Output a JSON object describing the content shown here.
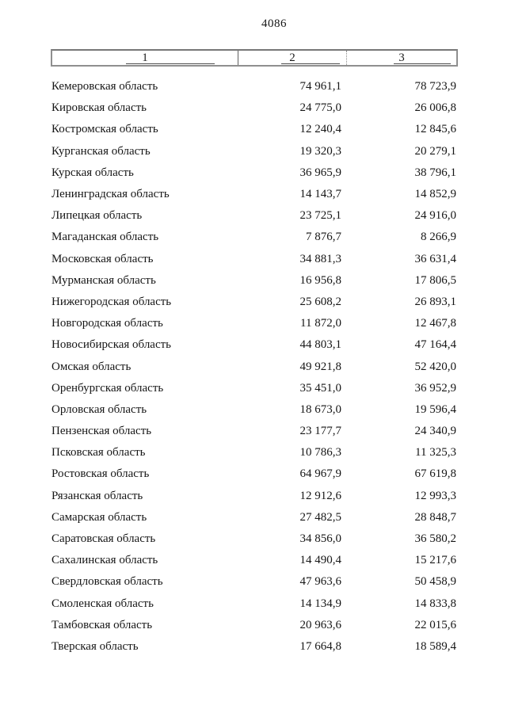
{
  "page": {
    "number": "4086"
  },
  "table": {
    "columns": [
      {
        "label": "1"
      },
      {
        "label": "2"
      },
      {
        "label": "3"
      }
    ],
    "rows": [
      {
        "name": "Кемеровская область",
        "value2": "74 961,1",
        "value3": "78 723,9"
      },
      {
        "name": "Кировская область",
        "value2": "24 775,0",
        "value3": "26 006,8"
      },
      {
        "name": "Костромская область",
        "value2": "12 240,4",
        "value3": "12 845,6"
      },
      {
        "name": "Курганская область",
        "value2": "19 320,3",
        "value3": "20 279,1"
      },
      {
        "name": "Курская область",
        "value2": "36 965,9",
        "value3": "38 796,1"
      },
      {
        "name": "Ленинградская область",
        "value2": "14 143,7",
        "value3": "14 852,9"
      },
      {
        "name": "Липецкая область",
        "value2": "23 725,1",
        "value3": "24 916,0"
      },
      {
        "name": "Магаданская область",
        "value2": "7 876,7",
        "value3": "8 266,9"
      },
      {
        "name": "Московская область",
        "value2": "34 881,3",
        "value3": "36 631,4"
      },
      {
        "name": "Мурманская область",
        "value2": "16 956,8",
        "value3": "17 806,5"
      },
      {
        "name": "Нижегородская область",
        "value2": "25 608,2",
        "value3": "26 893,1"
      },
      {
        "name": "Новгородская область",
        "value2": "11 872,0",
        "value3": "12 467,8"
      },
      {
        "name": "Новосибирская область",
        "value2": "44 803,1",
        "value3": "47 164,4"
      },
      {
        "name": "Омская область",
        "value2": "49 921,8",
        "value3": "52 420,0"
      },
      {
        "name": "Оренбургская область",
        "value2": "35 451,0",
        "value3": "36 952,9"
      },
      {
        "name": "Орловская область",
        "value2": "18 673,0",
        "value3": "19 596,4"
      },
      {
        "name": "Пензенская область",
        "value2": "23 177,7",
        "value3": "24 340,9"
      },
      {
        "name": "Псковская область",
        "value2": "10 786,3",
        "value3": "11 325,3"
      },
      {
        "name": "Ростовская область",
        "value2": "64 967,9",
        "value3": "67 619,8"
      },
      {
        "name": "Рязанская область",
        "value2": "12 912,6",
        "value3": "12 993,3"
      },
      {
        "name": "Самарская область",
        "value2": "27 482,5",
        "value3": "28 848,7"
      },
      {
        "name": "Саратовская область",
        "value2": "34 856,0",
        "value3": "36 580,2"
      },
      {
        "name": "Сахалинская область",
        "value2": "14 490,4",
        "value3": "15 217,6"
      },
      {
        "name": "Свердловская область",
        "value2": "47 963,6",
        "value3": "50 458,9"
      },
      {
        "name": "Смоленская область",
        "value2": "14 134,9",
        "value3": "14 833,8"
      },
      {
        "name": "Тамбовская область",
        "value2": "20 963,6",
        "value3": "22 015,6"
      },
      {
        "name": "Тверская область",
        "value2": "17 664,8",
        "value3": "18 589,4"
      }
    ]
  }
}
